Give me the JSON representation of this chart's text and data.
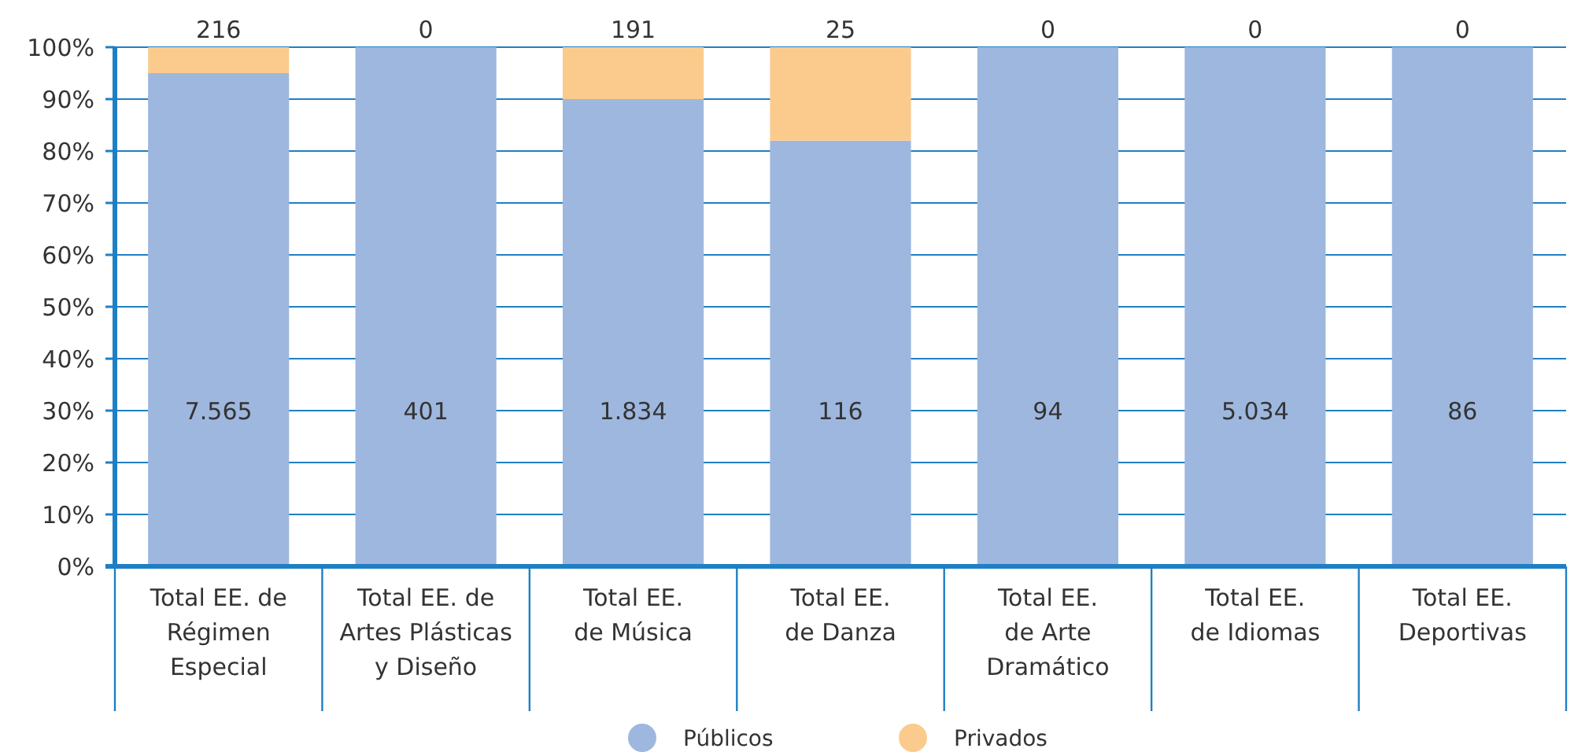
{
  "chart_data": {
    "type": "bar",
    "stacked": true,
    "categories": [
      "Total EE. de\nRégimen\nEspecial",
      "Total EE. de\nArtes Plásticas\ny Diseño",
      "Total EE.\nde Música",
      "Total EE.\nde Danza",
      "Total EE.\nde Arte\nDramático",
      "Total EE.\nde Idiomas",
      "Total EE.\nDeportivas"
    ],
    "series": [
      {
        "name": "Públicos",
        "color": "#9eb7de",
        "values": [
          95,
          100,
          90,
          82,
          100,
          100,
          100
        ]
      },
      {
        "name": "Privados",
        "color": "#fbcb8d",
        "values": [
          5,
          0,
          10,
          18,
          0,
          0,
          0
        ]
      }
    ],
    "annotations": [
      "7.565",
      "401",
      "1.834",
      "116",
      "94",
      "5.034",
      "86",
      "216",
      "0",
      "191",
      "25",
      "0",
      "0",
      "0"
    ],
    "ylim": [
      0,
      100
    ],
    "yticks": [
      {
        "value": 0,
        "label": "0%"
      },
      {
        "value": 10,
        "label": "10%"
      },
      {
        "value": 20,
        "label": "20%"
      },
      {
        "value": 30,
        "label": "30%"
      },
      {
        "value": 40,
        "label": "40%"
      },
      {
        "value": 50,
        "label": "50%"
      },
      {
        "value": 60,
        "label": "60%"
      },
      {
        "value": 70,
        "label": "70%"
      },
      {
        "value": 80,
        "label": "80%"
      },
      {
        "value": 90,
        "label": "90%"
      },
      {
        "value": 100,
        "label": "100%"
      }
    ],
    "grid": "y",
    "legend": "bottom"
  }
}
